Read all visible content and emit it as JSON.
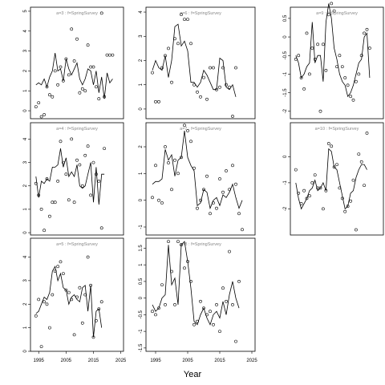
{
  "figure": {
    "xlabel": "Year"
  },
  "chart_data": [
    {
      "type": "scatter",
      "strip": "a=3  :  f=SpringSurvey",
      "xlim": [
        1992,
        2026
      ],
      "ylim": [
        -0.4,
        5.2
      ],
      "yticks": [
        0,
        1,
        2,
        3,
        4,
        5
      ],
      "xticks": [],
      "years": [
        1994,
        1995,
        1996,
        1997,
        1998,
        1999,
        2000,
        2001,
        2002,
        2003,
        2004,
        2005,
        2006,
        2007,
        2008,
        2009,
        2010,
        2011,
        2012,
        2013,
        2014,
        2015,
        2016,
        2017,
        2018,
        2019,
        2020,
        2021,
        2022,
        2023,
        2024
      ],
      "points": [
        0.2,
        0.4,
        -0.3,
        -0.2,
        1.2,
        0.8,
        0.7,
        2.0,
        1.3,
        2.2,
        1.5,
        2.6,
        1.8,
        4.1,
        2.5,
        3.6,
        0.9,
        1.1,
        1.0,
        3.3,
        2.2,
        2.2,
        1.2,
        0.6,
        4.9,
        0.7,
        2.8,
        2.8,
        2.8,
        null,
        null
      ],
      "fit": [
        1.3,
        1.4,
        1.3,
        1.6,
        1.2,
        1.7,
        2.0,
        2.9,
        2.0,
        2.1,
        1.5,
        2.6,
        2.1,
        1.8,
        2.1,
        2.4,
        1.6,
        1.3,
        1.6,
        2.1,
        2.0,
        1.3,
        2.0,
        0.9,
        1.7,
        0.6,
        1.9,
        1.4,
        1.6,
        null,
        null
      ]
    },
    {
      "type": "scatter",
      "strip": "a=6  :  f=SpringSurvey",
      "xlim": [
        1992,
        2026
      ],
      "ylim": [
        -0.4,
        4.2
      ],
      "yticks": [
        0,
        1,
        2,
        3,
        4
      ],
      "xticks": [],
      "years": [
        1994,
        1995,
        1996,
        1997,
        1998,
        1999,
        2000,
        2001,
        2002,
        2003,
        2004,
        2005,
        2006,
        2007,
        2008,
        2009,
        2010,
        2011,
        2012,
        2013,
        2014,
        2015,
        2016,
        2017,
        2018,
        2019,
        2020,
        2021,
        2022,
        2023,
        2024
      ],
      "points": [
        1.5,
        0.3,
        0.3,
        1.7,
        2.2,
        2.5,
        1.1,
        2.9,
        2.7,
        3.9,
        3.7,
        3.7,
        2.7,
        1.0,
        0.7,
        0.5,
        1.3,
        0.4,
        1.7,
        1.7,
        0.8,
        0.9,
        1.7,
        1.0,
        0.9,
        -0.3,
        1.7,
        null,
        null,
        null,
        null
      ],
      "fit": [
        1.6,
        2.0,
        1.7,
        1.6,
        2.2,
        1.3,
        2.0,
        3.4,
        3.5,
        2.6,
        2.8,
        2.4,
        1.1,
        1.1,
        0.9,
        1.1,
        1.6,
        1.4,
        1.1,
        0.8,
        0.8,
        2.1,
        2.0,
        0.9,
        0.8,
        1.0,
        0.5,
        null,
        null,
        null,
        null
      ]
    },
    {
      "type": "scatter",
      "strip": "a=9  :  f=SpringSurvey",
      "xlim": [
        1992,
        2026
      ],
      "ylim": [
        -2.2,
        0.8
      ],
      "yticks": [
        0.5,
        0.0,
        -0.5,
        -1.0,
        -1.5,
        -2.0
      ],
      "xticks": [],
      "years": [
        1994,
        1995,
        1996,
        1997,
        1998,
        1999,
        2000,
        2001,
        2002,
        2003,
        2004,
        2005,
        2006,
        2007,
        2008,
        2009,
        2010,
        2011,
        2012,
        2013,
        2014,
        2015,
        2016,
        2017,
        2018,
        2019,
        2020,
        2021,
        2022,
        2023,
        2024
      ],
      "points": [
        -0.6,
        -0.5,
        -1.1,
        -1.4,
        0.1,
        -1.0,
        -0.3,
        -0.6,
        -0.2,
        -2.0,
        -0.2,
        -0.9,
        0.6,
        0.9,
        0.7,
        -0.8,
        -0.5,
        -0.8,
        -1.1,
        -1.3,
        -1.6,
        -1.7,
        -1.2,
        -1.0,
        -0.5,
        0.1,
        0.2,
        -0.3,
        null,
        null,
        null
      ],
      "fit": [
        -0.5,
        -0.7,
        -1.1,
        -1.0,
        -0.8,
        -0.7,
        0.4,
        -0.7,
        -0.5,
        -0.5,
        -1.2,
        0.4,
        0.9,
        0.5,
        -0.3,
        -0.6,
        -1.0,
        -1.2,
        -1.3,
        -1.6,
        -1.5,
        -1.3,
        -1.0,
        -0.7,
        -0.6,
        0.0,
        0.1,
        -1.1,
        null,
        null,
        null
      ]
    },
    {
      "type": "scatter",
      "strip": "a=4  :  f=SpringSurvey",
      "xlim": [
        1992,
        2026
      ],
      "ylim": [
        -0.1,
        4.7
      ],
      "yticks": [
        0,
        1,
        2,
        3,
        4
      ],
      "xticks": [],
      "years": [
        1994,
        1995,
        1996,
        1997,
        1998,
        1999,
        2000,
        2001,
        2002,
        2003,
        2004,
        2005,
        2006,
        2007,
        2008,
        2009,
        2010,
        2011,
        2012,
        2013,
        2014,
        2015,
        2016,
        2017,
        2018,
        2019,
        2020,
        2021,
        2022,
        2023,
        2024
      ],
      "points": [
        2.1,
        1.6,
        1.0,
        0.1,
        2.3,
        0.7,
        1.3,
        1.3,
        2.2,
        3.9,
        3.0,
        2.5,
        1.4,
        4.0,
        1.3,
        3.1,
        2.9,
        2.0,
        3.3,
        3.7,
        1.6,
        3.0,
        2.5,
        2.2,
        0.2,
        3.6,
        null,
        null,
        null,
        null,
        null
      ],
      "fit": [
        2.4,
        1.5,
        2.2,
        2.1,
        2.3,
        2.2,
        2.8,
        2.8,
        2.9,
        3.6,
        2.8,
        3.2,
        2.4,
        2.6,
        2.4,
        2.9,
        2.0,
        1.9,
        2.0,
        2.5,
        3.0,
        1.3,
        2.8,
        1.2,
        2.5,
        2.5,
        null,
        null,
        null,
        null,
        null
      ]
    },
    {
      "type": "scatter",
      "strip": "a=7  :  f=SpringSurvey",
      "xlim": [
        1992,
        2026
      ],
      "ylim": [
        -1.3,
        2.9
      ],
      "yticks": [
        -1,
        0,
        1,
        2
      ],
      "xticks": [],
      "years": [
        1994,
        1995,
        1996,
        1997,
        1998,
        1999,
        2000,
        2001,
        2002,
        2003,
        2004,
        2005,
        2006,
        2007,
        2008,
        2009,
        2010,
        2011,
        2012,
        2013,
        2014,
        2015,
        2016,
        2017,
        2018,
        2019,
        2020,
        2021,
        2022,
        2023,
        2024
      ],
      "points": [
        0.1,
        1.3,
        0.0,
        -0.1,
        2.0,
        1.4,
        0.4,
        1.5,
        1.0,
        1.6,
        2.8,
        2.6,
        2.2,
        1.2,
        -0.3,
        0.0,
        0.4,
        0.9,
        -0.5,
        -0.1,
        -0.3,
        0.8,
        0.3,
        1.1,
        0.4,
        1.3,
        0.6,
        -0.5,
        -1.1,
        null,
        null
      ],
      "fit": [
        0.6,
        0.7,
        0.7,
        0.8,
        1.9,
        1.5,
        1.7,
        0.9,
        1.5,
        1.6,
        2.6,
        1.6,
        1.3,
        1.1,
        -0.2,
        -0.1,
        0.4,
        0.3,
        -0.3,
        0.0,
        0.1,
        -0.2,
        0.2,
        0.1,
        0.3,
        0.6,
        0.1,
        -0.3,
        0.0,
        null,
        null
      ]
    },
    {
      "type": "scatter",
      "strip": "a=10  :  f=SpringSurvey",
      "xlim": [
        1992,
        2026
      ],
      "ylim": [
        -3.0,
        1.3
      ],
      "yticks": [
        0,
        -1,
        -2
      ],
      "xticks": [],
      "years": [
        1994,
        1995,
        1996,
        1997,
        1998,
        1999,
        2000,
        2001,
        2002,
        2003,
        2004,
        2005,
        2006,
        2007,
        2008,
        2009,
        2010,
        2011,
        2012,
        2013,
        2014,
        2015,
        2016,
        2017,
        2018,
        2019,
        2020,
        2021,
        2022,
        2023,
        2024
      ],
      "points": [
        -0.5,
        -1.4,
        -1.8,
        -1.3,
        -1.6,
        -1.5,
        -1.0,
        -0.7,
        -1.2,
        -1.2,
        -2.0,
        -1.3,
        0.5,
        0.4,
        -0.4,
        -0.3,
        -1.2,
        -1.6,
        -2.1,
        -1.9,
        -1.7,
        -0.9,
        -2.8,
        0.1,
        -0.2,
        -1.1,
        0.9,
        null,
        null,
        null,
        null
      ],
      "fit": [
        -1.0,
        -1.6,
        -2.0,
        -1.8,
        -1.6,
        -1.3,
        -1.2,
        -0.9,
        -1.3,
        -1.2,
        -1.0,
        -1.3,
        0.3,
        0.2,
        -0.4,
        -0.5,
        -1.0,
        -1.5,
        -2.0,
        -1.9,
        -1.4,
        -1.3,
        -0.8,
        -0.5,
        -0.3,
        -0.3,
        -0.5,
        null,
        null,
        null,
        null
      ]
    },
    {
      "type": "scatter",
      "strip": "a=5  :  f=SpringSurvey",
      "xlim": [
        1992,
        2026
      ],
      "ylim": [
        0,
        4.8
      ],
      "yticks": [
        0,
        1,
        2,
        3,
        4
      ],
      "xticks": [
        1995,
        2005,
        2015,
        2025
      ],
      "years": [
        1994,
        1995,
        1996,
        1997,
        1998,
        1999,
        2000,
        2001,
        2002,
        2003,
        2004,
        2005,
        2006,
        2007,
        2008,
        2009,
        2010,
        2011,
        2012,
        2013,
        2014,
        2015,
        2016,
        2017,
        2018,
        2019,
        2020,
        2021,
        2022,
        2023,
        2024
      ],
      "points": [
        1.5,
        2.2,
        0.2,
        2.1,
        2.0,
        1.0,
        2.4,
        3.4,
        3.6,
        3.8,
        3.3,
        2.6,
        2.5,
        2.2,
        0.7,
        2.3,
        2.7,
        1.2,
        2.4,
        4.0,
        2.8,
        0.6,
        1.3,
        1.8,
        2.1,
        null,
        null,
        null,
        null,
        null,
        null
      ],
      "fit": [
        1.6,
        1.7,
        2.0,
        2.3,
        2.2,
        2.5,
        3.4,
        3.6,
        3.0,
        3.3,
        2.7,
        2.6,
        2.0,
        2.3,
        2.4,
        2.2,
        2.1,
        2.7,
        2.8,
        1.7,
        2.8,
        0.6,
        1.7,
        1.8,
        1.0,
        null,
        null,
        null,
        null,
        null,
        null
      ]
    },
    {
      "type": "scatter",
      "strip": "a=8  :  f=SpringSurvey",
      "xlim": [
        1992,
        2026
      ],
      "ylim": [
        -1.6,
        1.8
      ],
      "yticks": [
        1.5,
        1.0,
        0.5,
        0.0,
        -0.5,
        -1.0,
        -1.5
      ],
      "xticks": [
        1995,
        2005,
        2015,
        2025
      ],
      "years": [
        1994,
        1995,
        1996,
        1997,
        1998,
        1999,
        2000,
        2001,
        2002,
        2003,
        2004,
        2005,
        2006,
        2007,
        2008,
        2009,
        2010,
        2011,
        2012,
        2013,
        2014,
        2015,
        2016,
        2017,
        2018,
        2019,
        2020,
        2021,
        2022,
        2023,
        2024
      ],
      "points": [
        -0.4,
        -0.5,
        -0.3,
        0.4,
        -0.2,
        1.7,
        0.8,
        -0.2,
        1.7,
        1.6,
        0.9,
        1.1,
        0.5,
        -0.8,
        -0.7,
        -0.1,
        -0.3,
        -0.5,
        -0.4,
        -0.8,
        -0.2,
        -1.0,
        0.3,
        -0.1,
        1.4,
        -0.2,
        -1.3,
        0.5,
        null,
        null,
        null
      ],
      "fit": [
        -0.2,
        -0.4,
        -0.3,
        0.0,
        0.1,
        1.6,
        0.4,
        0.6,
        -0.2,
        1.6,
        1.7,
        1.1,
        0.3,
        -0.7,
        -0.8,
        -0.5,
        -0.3,
        -0.6,
        -0.8,
        -0.5,
        -0.4,
        -0.6,
        -0.1,
        -0.5,
        0.1,
        0.5,
        0.0,
        -0.3,
        null,
        null,
        null
      ]
    }
  ]
}
